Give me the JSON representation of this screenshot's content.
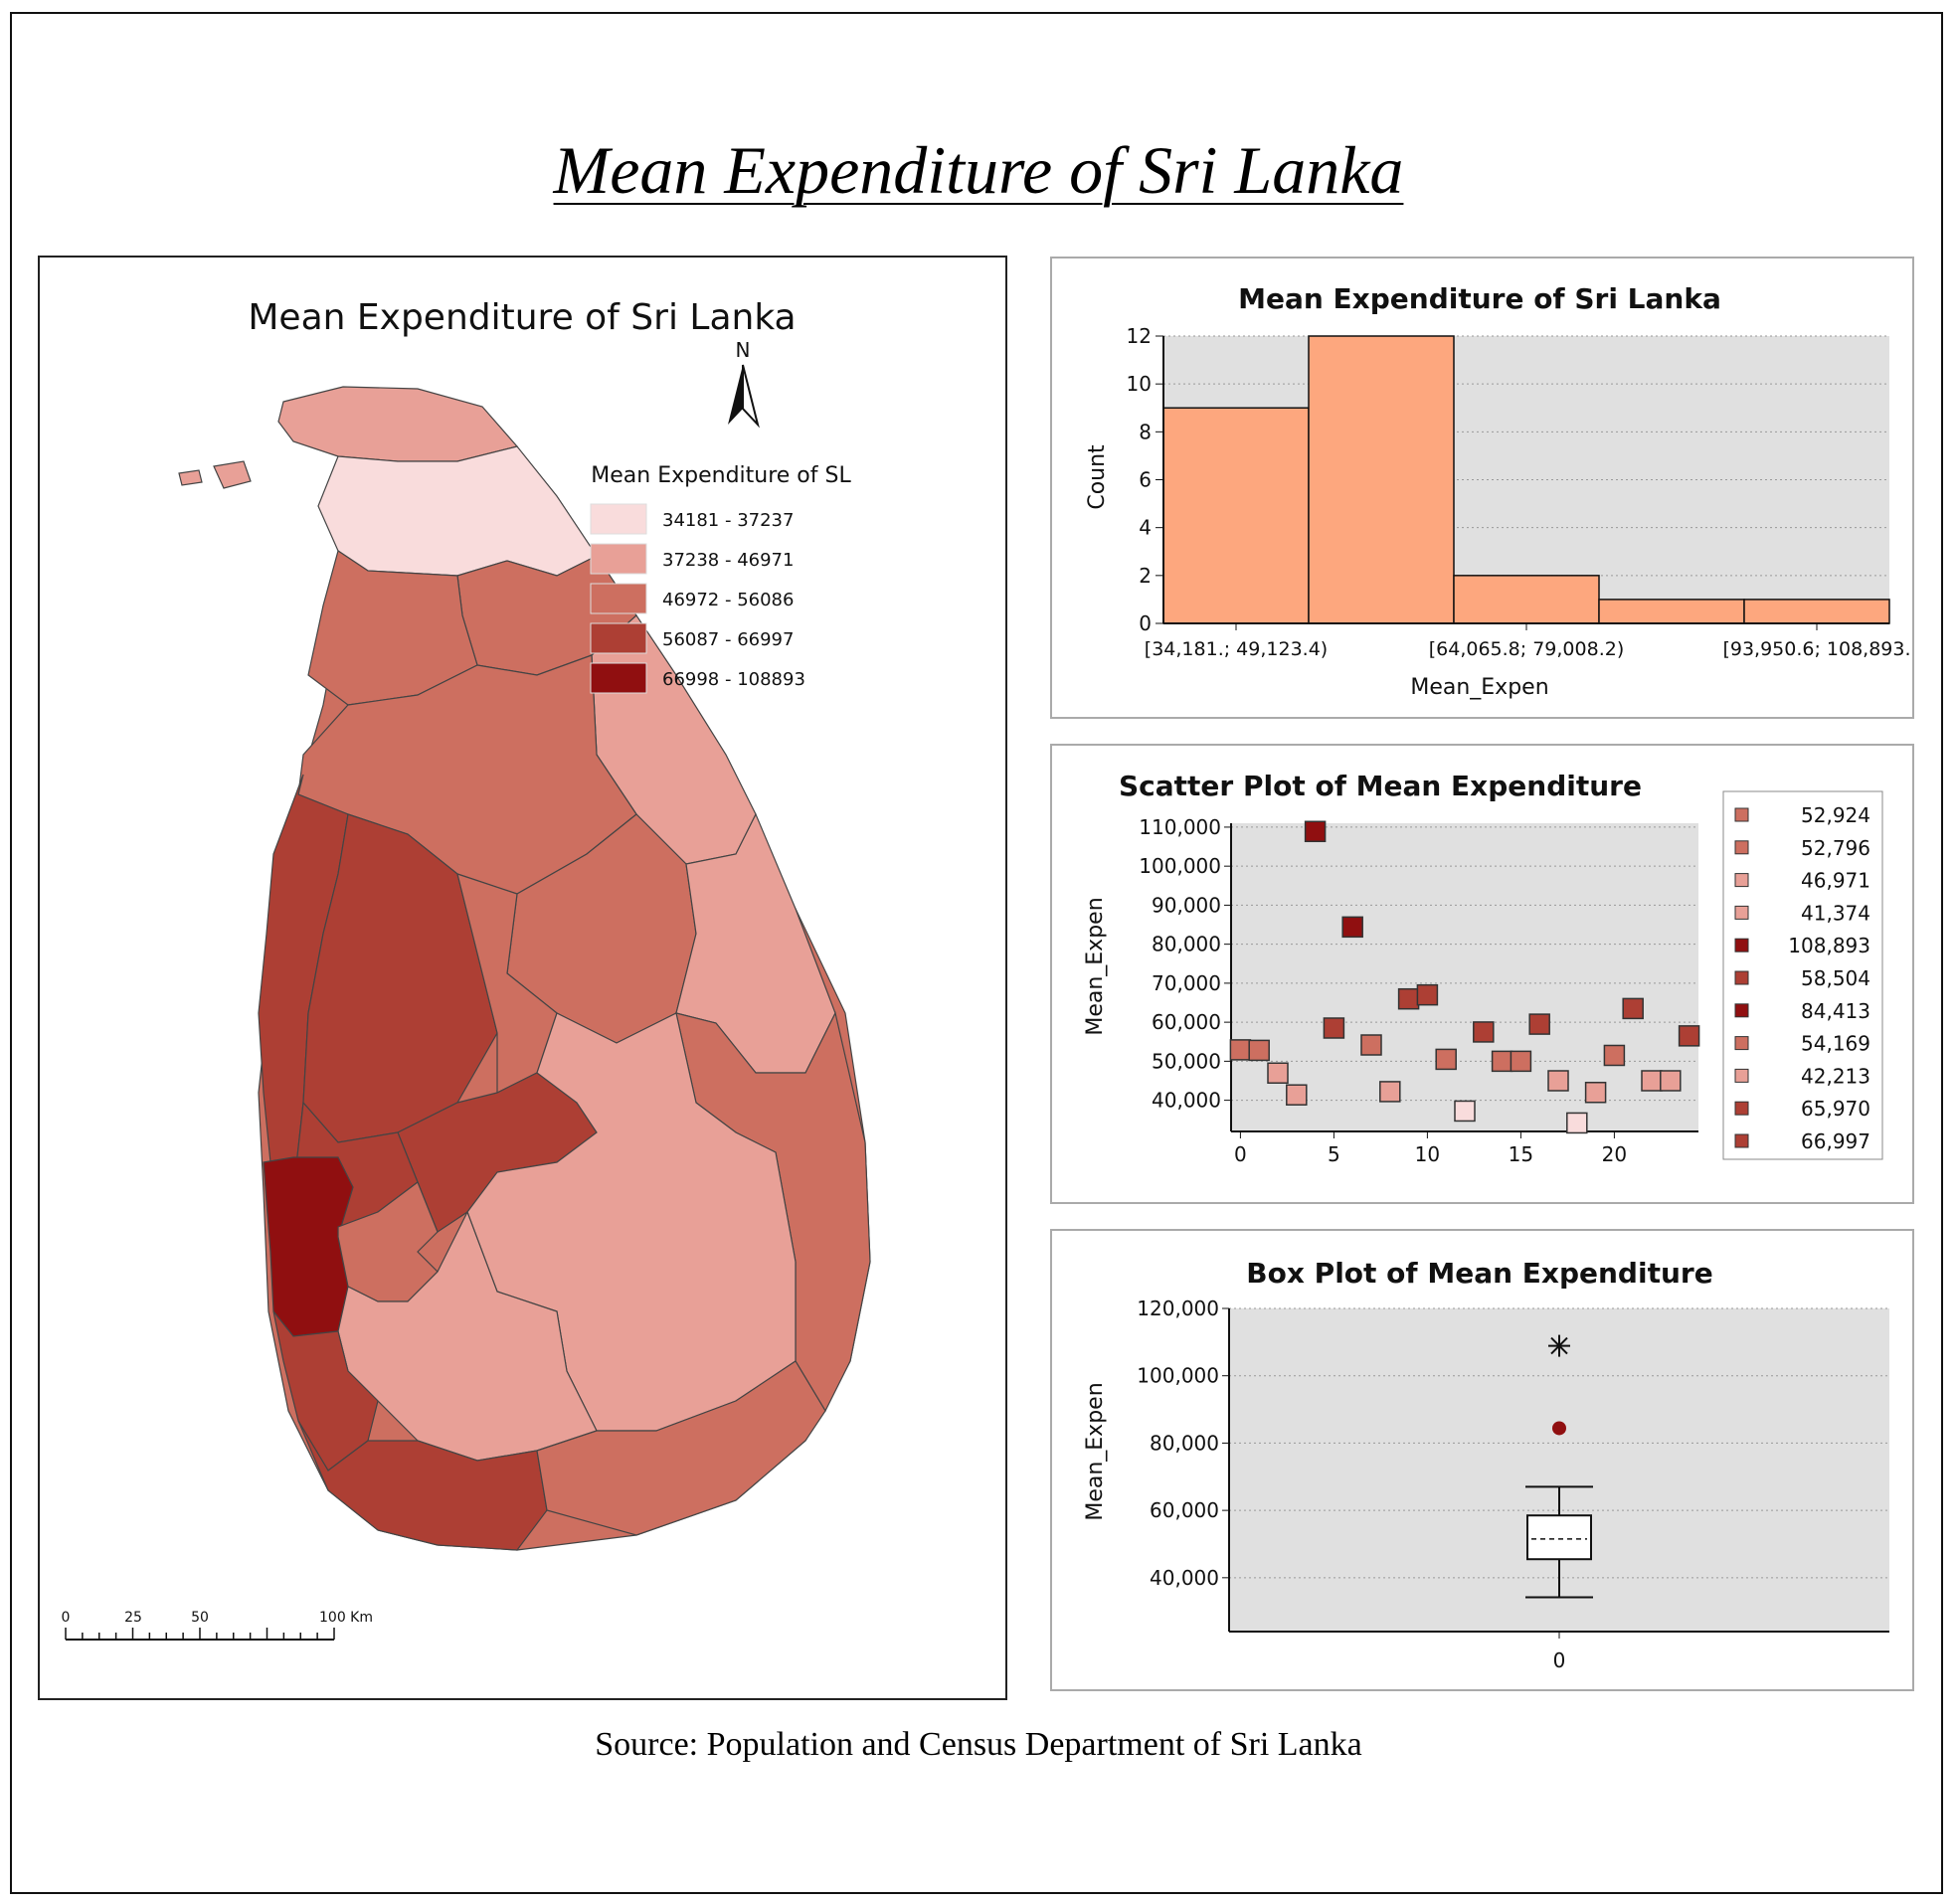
{
  "page": {
    "title": "Mean Expenditure of Sri Lanka",
    "source": "Source: Population and Census Department of Sri Lanka"
  },
  "map": {
    "title": "Mean Expenditure of Sri Lanka",
    "north": "N",
    "legend": {
      "title": "Mean Expenditure of SL",
      "classes": [
        {
          "label": "34181 - 37237",
          "color": "#f9dcdc"
        },
        {
          "label": "37238 - 46971",
          "color": "#e8a097"
        },
        {
          "label": "46972 - 56086",
          "color": "#cd6f60"
        },
        {
          "label": "56087 - 66997",
          "color": "#ad3f34"
        },
        {
          "label": "66998 - 108893",
          "color": "#900f10"
        }
      ]
    },
    "scalebar": {
      "labels": [
        "0",
        "25",
        "50",
        "100 Km"
      ]
    }
  },
  "chart_data": [
    {
      "type": "bar",
      "title": "Mean Expenditure of Sri Lanka",
      "xlabel": "Mean_Expen",
      "ylabel": "Count",
      "bins": [
        [
          34181,
          49123.4
        ],
        [
          49123.4,
          64065.8
        ],
        [
          64065.8,
          79008.2
        ],
        [
          79008.2,
          93950.6
        ],
        [
          93950.6,
          108893
        ]
      ],
      "values": [
        9,
        12,
        2,
        1,
        1
      ],
      "xtick_labels": [
        "[34,181.; 49,123.4)",
        "[64,065.8; 79,008.2)",
        "[93,950.6; 108,893."
      ],
      "yticks": [
        "0",
        "2",
        "4",
        "6",
        "8",
        "10",
        "12"
      ],
      "ylim": [
        0,
        12
      ],
      "bar_color": "#fda77e",
      "grid": true
    },
    {
      "type": "scatter",
      "title": "Scatter Plot of Mean Expenditure",
      "xlabel": "",
      "ylabel": "Mean_Expen",
      "x": [
        0,
        1,
        2,
        3,
        4,
        5,
        6,
        7,
        8,
        9,
        10,
        11,
        12,
        13,
        14,
        15,
        16,
        17,
        18,
        19,
        20,
        21,
        22,
        23,
        24
      ],
      "y": [
        52924,
        52796,
        46971,
        41374,
        108893,
        58504,
        84413,
        54169,
        42213,
        65970,
        66997,
        50500,
        37237,
        57500,
        50000,
        50000,
        59500,
        45000,
        34181,
        42000,
        51500,
        63500,
        45000,
        45000,
        56500
      ],
      "xticks": [
        "0",
        "5",
        "10",
        "15",
        "20"
      ],
      "yticks": [
        "40,000",
        "50,000",
        "60,000",
        "70,000",
        "80,000",
        "90,000",
        "100,000",
        "110,000"
      ],
      "xlim": [
        -0.5,
        24.5
      ],
      "ylim": [
        32000,
        111000
      ],
      "legend": [
        "52,924",
        "52,796",
        "46,971",
        "41,374",
        "108,893",
        "58,504",
        "84,413",
        "54,169",
        "42,213",
        "65,970",
        "66,997"
      ],
      "grid": true
    },
    {
      "type": "box",
      "title": "Box Plot of Mean Expenditure",
      "xlabel": "",
      "ylabel": "Mean_Expen",
      "category": "0",
      "whisker_low": 34181,
      "q1": 45500,
      "median": 51500,
      "q3": 58500,
      "whisker_high": 67000,
      "outlier": 84413,
      "extreme": 108893,
      "yticks": [
        "40,000",
        "60,000",
        "80,000",
        "100,000",
        "120,000"
      ],
      "ylim": [
        24000,
        120000
      ],
      "grid": true
    }
  ]
}
